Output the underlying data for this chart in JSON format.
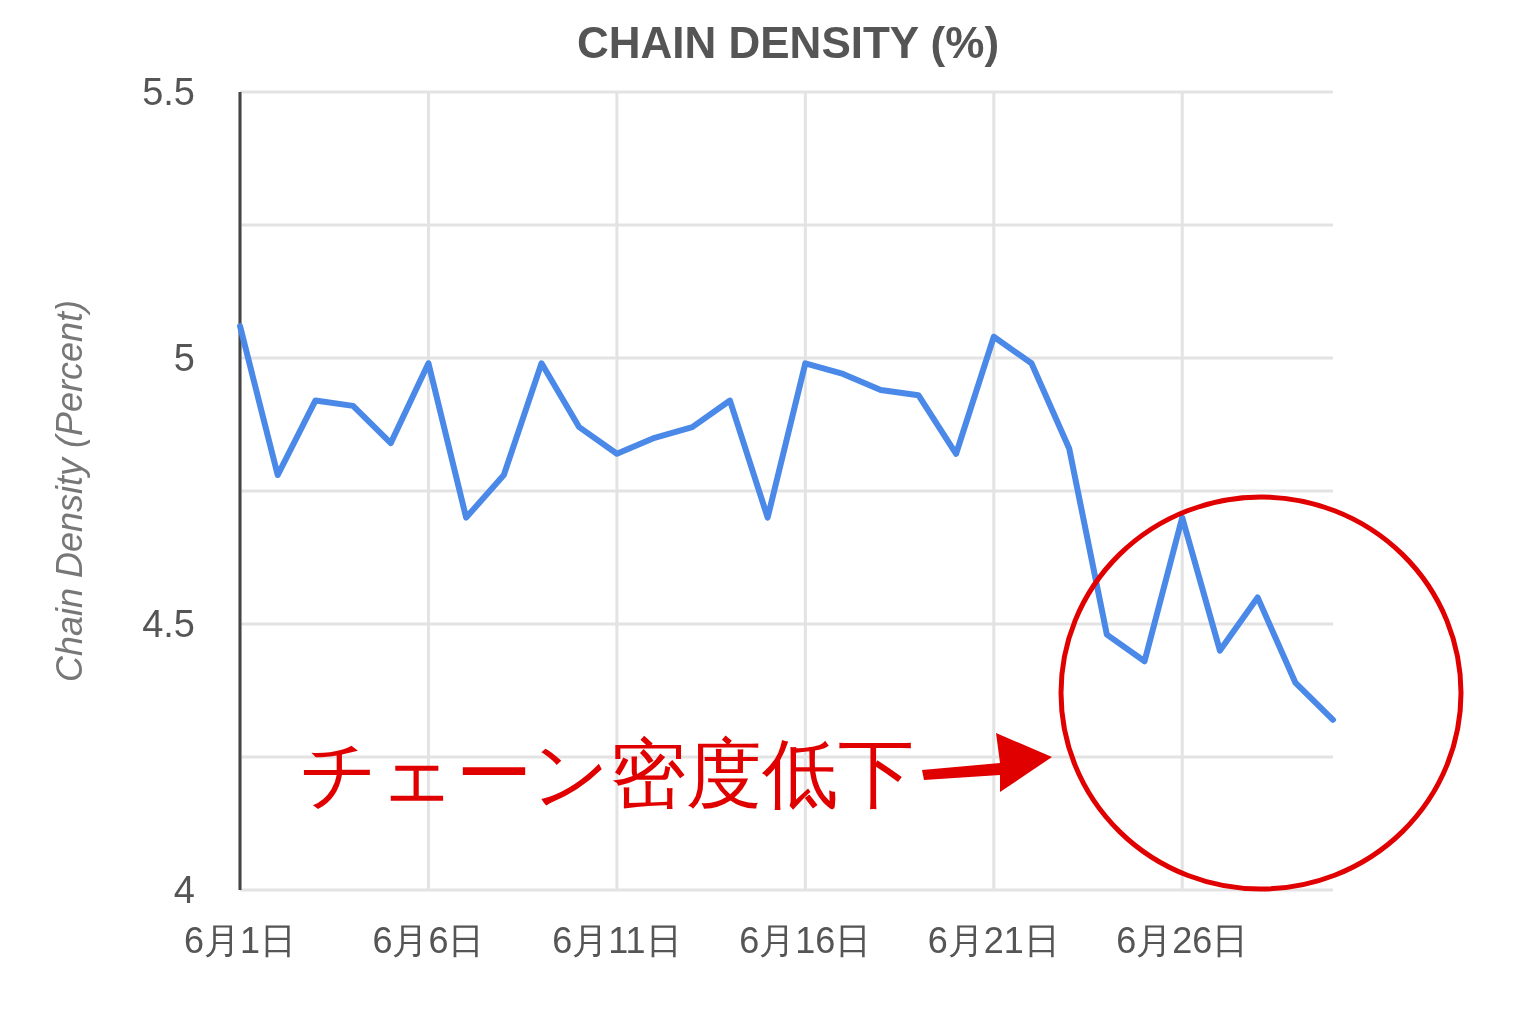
{
  "chart_data": {
    "type": "line",
    "title": "CHAIN DENSITY (%)",
    "ylabel": "Chain Density (Percent)",
    "x": [
      "--06-01",
      "--06-02",
      "--06-03",
      "--06-04",
      "--06-05",
      "--06-06",
      "--06-07",
      "--06-08",
      "--06-09",
      "--06-10",
      "--06-11",
      "--06-12",
      "--06-13",
      "--06-14",
      "--06-15",
      "--06-16",
      "--06-17",
      "--06-18",
      "--06-19",
      "--06-20",
      "--06-21",
      "--06-22",
      "--06-23",
      "--06-24",
      "--06-25",
      "--06-26",
      "--06-27",
      "--06-28",
      "--06-29",
      "--06-30"
    ],
    "series": [
      {
        "color": "#4a89e8",
        "values": [
          5.06,
          4.78,
          4.92,
          4.91,
          4.84,
          4.99,
          4.7,
          4.78,
          4.99,
          4.87,
          4.82,
          4.85,
          4.87,
          4.92,
          4.7,
          4.99,
          4.97,
          4.94,
          4.93,
          4.82,
          5.04,
          4.99,
          4.83,
          4.48,
          4.43,
          4.7,
          4.45,
          4.55,
          4.39,
          4.32
        ]
      }
    ],
    "xlim": [
      "--06-01",
      "--06-30"
    ],
    "xticks": [
      {
        "value": "--06-01",
        "label": "6月1日"
      },
      {
        "value": "--06-06",
        "label": "6月6日"
      },
      {
        "value": "--06-11",
        "label": "6月11日"
      },
      {
        "value": "--06-16",
        "label": "6月16日"
      },
      {
        "value": "--06-21",
        "label": "6月21日"
      },
      {
        "value": "--06-26",
        "label": "6月26日"
      }
    ],
    "ylim": [
      4,
      5.5
    ],
    "yticks": [
      4,
      {
        "value": 4.25,
        "label": null
      },
      4.5,
      {
        "value": 4.75,
        "label": null
      },
      5,
      {
        "value": 5.25,
        "label": null
      },
      5.5
    ],
    "grid": true,
    "marker": "none",
    "line_style": "solid",
    "annotations": [
      "チェーン密度低下"
    ]
  }
}
